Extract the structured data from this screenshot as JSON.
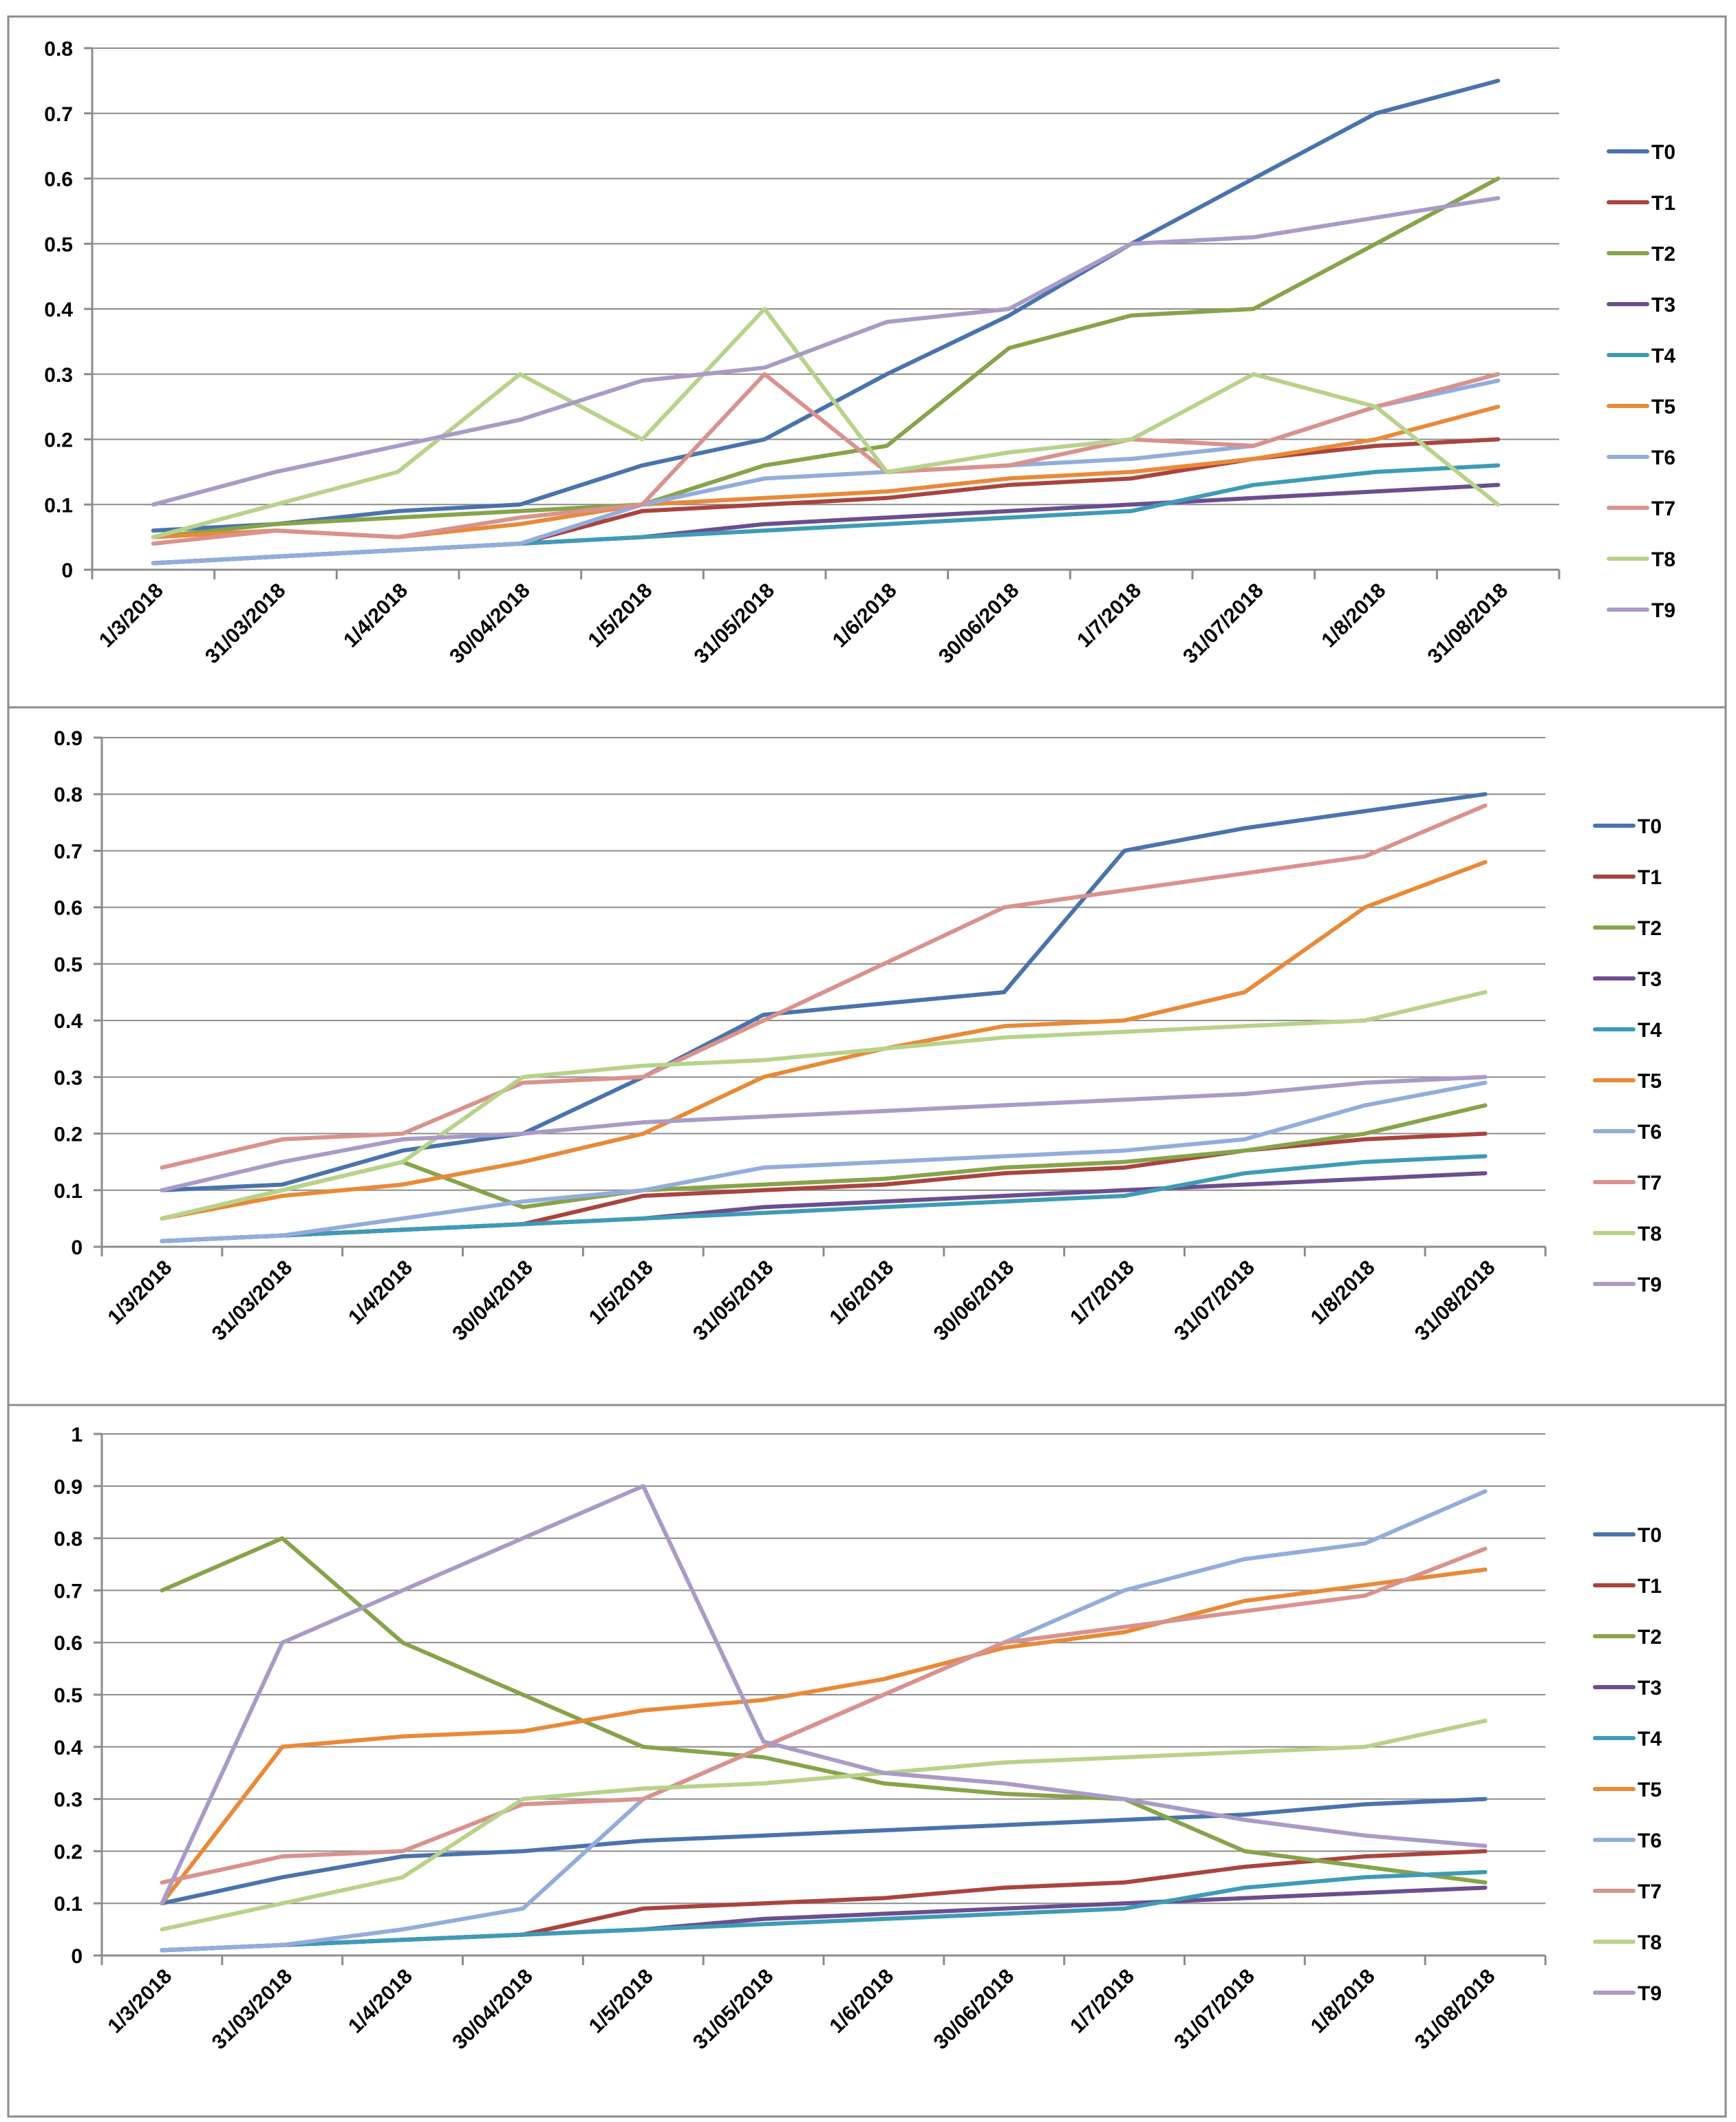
{
  "colors": {
    "T0": "#4a73ac",
    "T1": "#a9443f",
    "T2": "#86a44a",
    "T3": "#6b4e8e",
    "T4": "#3e9bb5",
    "T5": "#e88a38",
    "T6": "#93addb",
    "T7": "#d9928d",
    "T8": "#b7d38b",
    "T9": "#a99bc6"
  },
  "chart_data": [
    {
      "type": "line",
      "title": "",
      "xlabel": "",
      "ylabel": "",
      "ylim": [
        0,
        0.8
      ],
      "yticks": [
        "0",
        "0.1",
        "0.2",
        "0.3",
        "0.4",
        "0.5",
        "0.6",
        "0.7",
        "0.8"
      ],
      "grid": true,
      "legend": "right",
      "categories": [
        "1/3/2018",
        "31/03/2018",
        "1/4/2018",
        "30/04/2018",
        "1/5/2018",
        "31/05/2018",
        "1/6/2018",
        "30/06/2018",
        "1/7/2018",
        "31/07/2018",
        "1/8/2018",
        "31/08/2018"
      ],
      "series": [
        {
          "name": "T0",
          "values": [
            0.06,
            0.07,
            0.09,
            0.1,
            0.16,
            0.2,
            0.3,
            0.39,
            0.5,
            0.6,
            0.7,
            0.75
          ]
        },
        {
          "name": "T1",
          "values": [
            0.01,
            0.02,
            0.03,
            0.04,
            0.09,
            0.1,
            0.11,
            0.13,
            0.14,
            0.17,
            0.19,
            0.2
          ]
        },
        {
          "name": "T2",
          "values": [
            0.05,
            0.07,
            0.08,
            0.09,
            0.1,
            0.16,
            0.19,
            0.34,
            0.39,
            0.4,
            0.5,
            0.6
          ]
        },
        {
          "name": "T3",
          "values": [
            0.01,
            0.02,
            0.03,
            0.04,
            0.05,
            0.07,
            0.08,
            0.09,
            0.1,
            0.11,
            0.12,
            0.13
          ]
        },
        {
          "name": "T4",
          "values": [
            0.01,
            0.02,
            0.03,
            0.04,
            0.05,
            0.06,
            0.07,
            0.08,
            0.09,
            0.13,
            0.15,
            0.16
          ]
        },
        {
          "name": "T5",
          "values": [
            0.05,
            0.06,
            0.05,
            0.07,
            0.1,
            0.11,
            0.12,
            0.14,
            0.15,
            0.17,
            0.2,
            0.25
          ]
        },
        {
          "name": "T6",
          "values": [
            0.01,
            0.02,
            0.03,
            0.04,
            0.1,
            0.14,
            0.15,
            0.16,
            0.17,
            0.19,
            0.25,
            0.29
          ]
        },
        {
          "name": "T7",
          "values": [
            0.04,
            0.06,
            0.05,
            0.08,
            0.1,
            0.3,
            0.15,
            0.16,
            0.2,
            0.19,
            0.25,
            0.3
          ]
        },
        {
          "name": "T8",
          "values": [
            0.05,
            0.1,
            0.15,
            0.3,
            0.2,
            0.4,
            0.15,
            0.18,
            0.2,
            0.3,
            0.25,
            0.1
          ]
        },
        {
          "name": "T9",
          "values": [
            0.1,
            0.15,
            0.19,
            0.23,
            0.29,
            0.31,
            0.38,
            0.4,
            0.5,
            0.51,
            0.54,
            0.57
          ]
        }
      ]
    },
    {
      "type": "line",
      "title": "",
      "xlabel": "",
      "ylabel": "",
      "ylim": [
        0,
        0.9
      ],
      "yticks": [
        "0",
        "0.1",
        "0.2",
        "0.3",
        "0.4",
        "0.5",
        "0.6",
        "0.7",
        "0.8",
        "0.9"
      ],
      "grid": true,
      "legend": "right",
      "categories": [
        "1/3/2018",
        "31/03/2018",
        "1/4/2018",
        "30/04/2018",
        "1/5/2018",
        "31/05/2018",
        "1/6/2018",
        "30/06/2018",
        "1/7/2018",
        "31/07/2018",
        "1/8/2018",
        "31/08/2018"
      ],
      "series": [
        {
          "name": "T0",
          "values": [
            0.1,
            0.11,
            0.17,
            0.2,
            0.3,
            0.41,
            0.43,
            0.45,
            0.7,
            0.74,
            0.77,
            0.8
          ]
        },
        {
          "name": "T1",
          "values": [
            0.01,
            0.02,
            0.03,
            0.04,
            0.09,
            0.1,
            0.11,
            0.13,
            0.14,
            0.17,
            0.19,
            0.2
          ]
        },
        {
          "name": "T2",
          "values": [
            0.05,
            0.1,
            0.15,
            0.07,
            0.1,
            0.11,
            0.12,
            0.14,
            0.15,
            0.17,
            0.2,
            0.25
          ]
        },
        {
          "name": "T3",
          "values": [
            0.01,
            0.02,
            0.03,
            0.04,
            0.05,
            0.07,
            0.08,
            0.09,
            0.1,
            0.11,
            0.12,
            0.13
          ]
        },
        {
          "name": "T4",
          "values": [
            0.01,
            0.02,
            0.03,
            0.04,
            0.05,
            0.06,
            0.07,
            0.08,
            0.09,
            0.13,
            0.15,
            0.16
          ]
        },
        {
          "name": "T5",
          "values": [
            0.05,
            0.09,
            0.11,
            0.15,
            0.2,
            0.3,
            0.35,
            0.39,
            0.4,
            0.45,
            0.6,
            0.68
          ]
        },
        {
          "name": "T6",
          "values": [
            0.01,
            0.02,
            0.05,
            0.08,
            0.1,
            0.14,
            0.15,
            0.16,
            0.17,
            0.19,
            0.25,
            0.29
          ]
        },
        {
          "name": "T7",
          "values": [
            0.14,
            0.19,
            0.2,
            0.29,
            0.3,
            0.4,
            0.5,
            0.6,
            0.63,
            0.66,
            0.69,
            0.78
          ]
        },
        {
          "name": "T8",
          "values": [
            0.05,
            0.1,
            0.15,
            0.3,
            0.32,
            0.33,
            0.35,
            0.37,
            0.38,
            0.39,
            0.4,
            0.45
          ]
        },
        {
          "name": "T9",
          "values": [
            0.1,
            0.15,
            0.19,
            0.2,
            0.22,
            0.23,
            0.24,
            0.25,
            0.26,
            0.27,
            0.29,
            0.3
          ]
        }
      ]
    },
    {
      "type": "line",
      "title": "",
      "xlabel": "",
      "ylabel": "",
      "ylim": [
        0,
        1
      ],
      "yticks": [
        "0",
        "0.1",
        "0.2",
        "0.3",
        "0.4",
        "0.5",
        "0.6",
        "0.7",
        "0.8",
        "0.9",
        "1"
      ],
      "grid": true,
      "legend": "right",
      "categories": [
        "1/3/2018",
        "31/03/2018",
        "1/4/2018",
        "30/04/2018",
        "1/5/2018",
        "31/05/2018",
        "1/6/2018",
        "30/06/2018",
        "1/7/2018",
        "31/07/2018",
        "1/8/2018",
        "31/08/2018"
      ],
      "series": [
        {
          "name": "T0",
          "values": [
            0.1,
            0.15,
            0.19,
            0.2,
            0.22,
            0.23,
            0.24,
            0.25,
            0.26,
            0.27,
            0.29,
            0.3
          ]
        },
        {
          "name": "T1",
          "values": [
            0.01,
            0.02,
            0.03,
            0.04,
            0.09,
            0.1,
            0.11,
            0.13,
            0.14,
            0.17,
            0.19,
            0.2
          ]
        },
        {
          "name": "T2",
          "values": [
            0.7,
            0.8,
            0.6,
            0.5,
            0.4,
            0.38,
            0.33,
            0.31,
            0.3,
            0.2,
            0.17,
            0.14
          ]
        },
        {
          "name": "T3",
          "values": [
            0.01,
            0.02,
            0.03,
            0.04,
            0.05,
            0.07,
            0.08,
            0.09,
            0.1,
            0.11,
            0.12,
            0.13
          ]
        },
        {
          "name": "T4",
          "values": [
            0.01,
            0.02,
            0.03,
            0.04,
            0.05,
            0.06,
            0.07,
            0.08,
            0.09,
            0.13,
            0.15,
            0.16
          ]
        },
        {
          "name": "T5",
          "values": [
            0.1,
            0.4,
            0.42,
            0.43,
            0.47,
            0.49,
            0.53,
            0.59,
            0.62,
            0.68,
            0.71,
            0.74
          ]
        },
        {
          "name": "T6",
          "values": [
            0.01,
            0.02,
            0.05,
            0.09,
            0.3,
            0.4,
            0.5,
            0.6,
            0.7,
            0.76,
            0.79,
            0.89
          ]
        },
        {
          "name": "T7",
          "values": [
            0.14,
            0.19,
            0.2,
            0.29,
            0.3,
            0.4,
            0.5,
            0.6,
            0.63,
            0.66,
            0.69,
            0.78
          ]
        },
        {
          "name": "T8",
          "values": [
            0.05,
            0.1,
            0.15,
            0.3,
            0.32,
            0.33,
            0.35,
            0.37,
            0.38,
            0.39,
            0.4,
            0.45
          ]
        },
        {
          "name": "T9",
          "values": [
            0.1,
            0.6,
            0.7,
            0.8,
            0.9,
            0.41,
            0.35,
            0.33,
            0.3,
            0.26,
            0.23,
            0.21
          ]
        }
      ]
    }
  ]
}
